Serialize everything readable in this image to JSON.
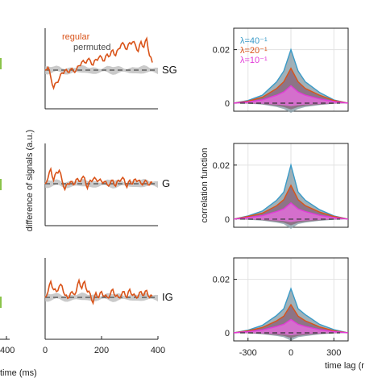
{
  "colors": {
    "regular": "#d95319",
    "permuted": "#4a4a4a",
    "band": "#bdbdbd",
    "lambda40": "#3a9bc8",
    "lambda20": "#d95319",
    "lambda10": "#e23ad8",
    "left_edge": "#8bc34a"
  },
  "labels": {
    "left_time_tick": "400",
    "left_xlabel": "time (ms)",
    "mid_ylabel": "difference of signals (a.u.)",
    "right_ylabel": "correlation function",
    "right_xlabel": "time lag (r"
  },
  "chart_data": [
    {
      "type": "line",
      "panel": "difference of signals",
      "rows": [
        "SG",
        "G",
        "IG"
      ],
      "x_ticks": [
        "0",
        "200",
        "400"
      ],
      "xlim": [
        0,
        400
      ],
      "legend": [
        "regular",
        "permuted"
      ],
      "legend_placement": "top-left",
      "series": [
        {
          "name": "regular",
          "row": "SG",
          "x": [
            0,
            10,
            20,
            30,
            40,
            50,
            60,
            70,
            80,
            90,
            100,
            110,
            120,
            130,
            140,
            150,
            160,
            170,
            180,
            190,
            200,
            210,
            220,
            230,
            240,
            250,
            260,
            270,
            280,
            290,
            300,
            310,
            320,
            330,
            340,
            350,
            360,
            370,
            380
          ],
          "y": [
            0,
            0.4,
            -0.8,
            -1.6,
            -1.3,
            -0.7,
            -0.4,
            0.1,
            -0.3,
            0.2,
            -0.2,
            0.1,
            0.3,
            0.9,
            0.6,
            1.1,
            0.8,
            0.6,
            0.9,
            1.3,
            1.1,
            1.0,
            1.4,
            1.5,
            1.8,
            1.5,
            1.9,
            2.6,
            2.3,
            2.1,
            2.5,
            2.8,
            2.3,
            1.9,
            2.6,
            2.3,
            2.9,
            1.5,
            0.6
          ]
        },
        {
          "name": "regular",
          "row": "G",
          "x": [
            0,
            10,
            20,
            30,
            40,
            50,
            60,
            70,
            80,
            90,
            100,
            110,
            120,
            130,
            140,
            150,
            160,
            170,
            180,
            190,
            200,
            210,
            220,
            230,
            240,
            250,
            260,
            270,
            280,
            290,
            300,
            310,
            320,
            330,
            340,
            350,
            360,
            370,
            380
          ],
          "y": [
            0,
            0.6,
            1.2,
            0.4,
            0.9,
            1.3,
            0.2,
            -0.4,
            -0.1,
            0.3,
            -0.2,
            0.5,
            0.1,
            0.6,
            0.4,
            -0.3,
            0.2,
            0.5,
            0.3,
            0.4,
            0.1,
            0.3,
            -0.2,
            0.1,
            0.2,
            -0.1,
            0.2,
            0.5,
            0.3,
            -0.2,
            0.2,
            0.1,
            0.3,
            0.4,
            -0.1,
            0.2,
            0.1,
            0.0,
            0.0
          ]
        },
        {
          "name": "regular",
          "row": "IG",
          "x": [
            0,
            10,
            20,
            30,
            40,
            50,
            60,
            70,
            80,
            90,
            100,
            110,
            120,
            130,
            140,
            150,
            160,
            170,
            180,
            190,
            200,
            210,
            220,
            230,
            240,
            250,
            260,
            270,
            280,
            290,
            300,
            310,
            320,
            330,
            340,
            350,
            360,
            370,
            380
          ],
          "y": [
            0,
            0.6,
            1.3,
            0.8,
            0.4,
            1.1,
            0.9,
            0.3,
            -0.2,
            0.5,
            0.2,
            0.6,
            1.4,
            0.9,
            1.3,
            0.6,
            0.2,
            -0.4,
            0.3,
            0.1,
            0.4,
            0.2,
            -0.1,
            0.3,
            0.6,
            0.2,
            -0.1,
            0.3,
            0.4,
            0.1,
            0.6,
            0.3,
            0.0,
            0.2,
            0.4,
            0.3,
            0.5,
            0.1,
            0.0
          ]
        }
      ]
    },
    {
      "type": "area",
      "panel": "correlation function",
      "rows": [
        "SG",
        "G",
        "IG"
      ],
      "x_ticks": [
        "-300",
        "0",
        "300"
      ],
      "y_ticks": [
        "0",
        "0.02"
      ],
      "xlim": [
        -400,
        400
      ],
      "ylim": [
        -0.003,
        0.028
      ],
      "grid": true,
      "legend": [
        "λ=40⁻¹",
        "λ=20⁻¹",
        "λ=10⁻¹"
      ],
      "legend_placement": "top-left",
      "series": [
        {
          "name": "λ=40⁻¹",
          "row": "SG",
          "x": [
            -400,
            -300,
            -200,
            -100,
            -50,
            0,
            50,
            100,
            200,
            300,
            400
          ],
          "y": [
            0,
            0.001,
            0.003,
            0.008,
            0.012,
            0.02,
            0.012,
            0.008,
            0.004,
            0.0012,
            0
          ]
        },
        {
          "name": "λ=20⁻¹",
          "row": "SG",
          "x": [
            -400,
            -300,
            -200,
            -100,
            -50,
            0,
            50,
            100,
            200,
            300,
            400
          ],
          "y": [
            0,
            0.0008,
            0.0022,
            0.0055,
            0.008,
            0.013,
            0.008,
            0.0055,
            0.003,
            0.001,
            0
          ]
        },
        {
          "name": "λ=10⁻¹",
          "row": "SG",
          "x": [
            -400,
            -300,
            -200,
            -100,
            -50,
            0,
            50,
            100,
            200,
            300,
            400
          ],
          "y": [
            0,
            0.0005,
            0.0012,
            0.003,
            0.0042,
            0.0065,
            0.0042,
            0.003,
            0.0016,
            0.0006,
            0
          ]
        },
        {
          "name": "λ=40⁻¹",
          "row": "G",
          "x": [
            -400,
            -300,
            -200,
            -100,
            -50,
            0,
            50,
            100,
            200,
            300,
            400
          ],
          "y": [
            0,
            0.0012,
            0.003,
            0.007,
            0.01,
            0.02,
            0.01,
            0.007,
            0.0035,
            0.0012,
            0
          ]
        },
        {
          "name": "λ=20⁻¹",
          "row": "G",
          "x": [
            -400,
            -300,
            -200,
            -100,
            -50,
            0,
            50,
            100,
            200,
            300,
            400
          ],
          "y": [
            0,
            0.001,
            0.0022,
            0.005,
            0.0072,
            0.0125,
            0.0072,
            0.005,
            0.0026,
            0.001,
            0
          ]
        },
        {
          "name": "λ=10⁻¹",
          "row": "G",
          "x": [
            -400,
            -300,
            -200,
            -100,
            -50,
            0,
            50,
            100,
            200,
            300,
            400
          ],
          "y": [
            0,
            0.0006,
            0.0013,
            0.0028,
            0.0038,
            0.006,
            0.0038,
            0.0028,
            0.0014,
            0.0006,
            0
          ]
        },
        {
          "name": "λ=40⁻¹",
          "row": "IG",
          "x": [
            -400,
            -300,
            -200,
            -100,
            -50,
            0,
            50,
            100,
            200,
            300,
            400
          ],
          "y": [
            0,
            0.001,
            0.0028,
            0.0065,
            0.009,
            0.0165,
            0.009,
            0.0068,
            0.0032,
            0.0012,
            0
          ]
        },
        {
          "name": "λ=20⁻¹",
          "row": "IG",
          "x": [
            -400,
            -300,
            -200,
            -100,
            -50,
            0,
            50,
            100,
            200,
            300,
            400
          ],
          "y": [
            0,
            0.0008,
            0.002,
            0.0045,
            0.0062,
            0.0105,
            0.0062,
            0.0045,
            0.0022,
            0.0008,
            0
          ]
        },
        {
          "name": "λ=10⁻¹",
          "row": "IG",
          "x": [
            -400,
            -300,
            -200,
            -100,
            -50,
            0,
            50,
            100,
            200,
            300,
            400
          ],
          "y": [
            0,
            0.0005,
            0.0011,
            0.0024,
            0.0032,
            0.005,
            0.0032,
            0.0024,
            0.0012,
            0.0005,
            0
          ]
        }
      ]
    }
  ]
}
